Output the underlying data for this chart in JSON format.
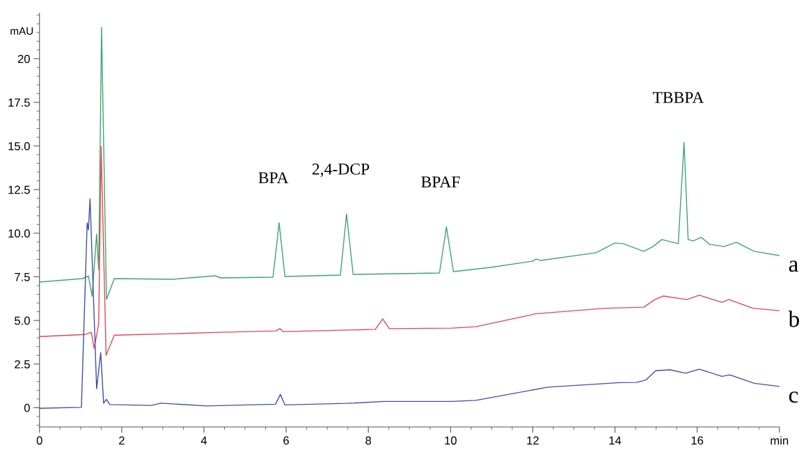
{
  "chart_data": {
    "type": "line",
    "ylabel": "mAU",
    "xlim": [
      0,
      18
    ],
    "ylim": [
      -1.1,
      22.6
    ],
    "xticks": [
      0,
      2,
      4,
      6,
      8,
      10,
      12,
      14,
      16,
      {
        "value": 18,
        "label": "min"
      }
    ],
    "yticks": [
      0,
      {
        "value": 2.5,
        "label": "2.5"
      },
      {
        "value": 5,
        "label": "5.0"
      },
      {
        "value": 7.5,
        "label": "7.5"
      },
      {
        "value": 10,
        "label": "10.0"
      },
      {
        "value": 12.5,
        "label": "12.5"
      },
      {
        "value": 15,
        "label": "15.0"
      },
      {
        "value": 17.5,
        "label": "17.5"
      },
      20
    ],
    "grid": false,
    "legend": false,
    "marker": "none",
    "line_style": "solid",
    "annotations": [
      {
        "text": "BPA",
        "x": 5.83,
        "y": 10.6
      },
      {
        "text": "2,4-DCP",
        "x": 7.47,
        "y": 11.1
      },
      {
        "text": "BPAF",
        "x": 9.9,
        "y": 10.36
      },
      {
        "text": "TBBPA",
        "x": 15.68,
        "y": 15.2
      }
    ],
    "series": [
      {
        "name": "a",
        "color": "#3aa66e",
        "x": [
          0,
          1.05,
          1.19,
          1.28,
          1.39,
          1.44,
          1.51,
          1.63,
          1.82,
          3.25,
          4.27,
          4.41,
          5.68,
          5.83,
          5.97,
          7.32,
          7.47,
          7.63,
          9.73,
          9.9,
          10.07,
          10.97,
          12.0,
          12.08,
          12.19,
          13.54,
          14.0,
          14.2,
          14.7,
          14.93,
          15.14,
          15.54,
          15.68,
          15.78,
          15.9,
          16.1,
          16.3,
          16.66,
          16.95,
          17.39,
          18.0
        ],
        "values": [
          7.2,
          7.4,
          7.55,
          6.4,
          9.95,
          7.9,
          21.8,
          6.2,
          7.4,
          7.36,
          7.56,
          7.44,
          7.48,
          10.6,
          7.52,
          7.6,
          11.1,
          7.64,
          7.72,
          10.36,
          7.8,
          8.04,
          8.4,
          8.52,
          8.44,
          8.88,
          9.44,
          9.4,
          8.96,
          9.24,
          9.64,
          9.4,
          15.2,
          9.64,
          9.56,
          9.76,
          9.36,
          9.24,
          9.48,
          8.96,
          8.72
        ]
      },
      {
        "name": "b",
        "color": "#e0474f",
        "x": [
          0,
          1.12,
          1.26,
          1.33,
          1.44,
          1.5,
          1.62,
          1.82,
          3.25,
          4.39,
          5.75,
          5.85,
          5.93,
          8.17,
          8.35,
          8.51,
          10.03,
          10.61,
          11.96,
          12.05,
          13.76,
          14.7,
          14.97,
          15.17,
          15.75,
          16.05,
          16.6,
          16.77,
          17.36,
          18.0
        ],
        "values": [
          4.08,
          4.2,
          4.32,
          3.4,
          4.8,
          14.96,
          3.0,
          4.16,
          4.24,
          4.32,
          4.4,
          4.53,
          4.36,
          4.49,
          5.09,
          4.53,
          4.56,
          4.64,
          5.32,
          5.38,
          5.7,
          5.76,
          6.2,
          6.4,
          6.2,
          6.45,
          6.04,
          6.2,
          5.7,
          5.56
        ]
      },
      {
        "name": "c",
        "color": "#3b4fa6",
        "x": [
          0,
          1.02,
          1.16,
          1.19,
          1.23,
          1.39,
          1.49,
          1.56,
          1.63,
          1.71,
          2.73,
          2.95,
          4.07,
          5.74,
          5.86,
          5.97,
          7.49,
          8.39,
          10.03,
          10.61,
          12.37,
          14.12,
          14.53,
          14.76,
          14.99,
          15.34,
          15.72,
          16.05,
          16.6,
          16.8,
          17.39,
          18.0
        ],
        "values": [
          -0.03,
          0.02,
          10.6,
          10.2,
          11.97,
          1.09,
          3.16,
          0.26,
          0.48,
          0.18,
          0.13,
          0.26,
          0.1,
          0.2,
          0.76,
          0.16,
          0.25,
          0.36,
          0.36,
          0.42,
          1.18,
          1.44,
          1.45,
          1.6,
          2.12,
          2.17,
          1.98,
          2.21,
          1.8,
          1.88,
          1.4,
          1.22
        ]
      }
    ]
  }
}
